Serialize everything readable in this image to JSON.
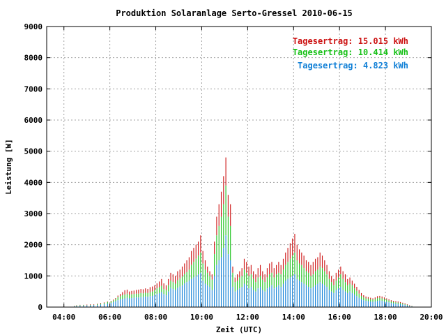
{
  "chart_data": {
    "type": "bar",
    "title": "Produktion Solaranlage Serto-Gressel 2010-06-15",
    "xlabel": "Zeit (UTC)",
    "ylabel": "Leistung [W]",
    "xlim": [
      3.25,
      20.0
    ],
    "ylim": [
      0,
      9000
    ],
    "x_ticks": [
      "04:00",
      "06:00",
      "08:00",
      "10:00",
      "12:00",
      "14:00",
      "16:00",
      "18:00",
      "20:00"
    ],
    "y_ticks": [
      "0",
      "1000",
      "2000",
      "3000",
      "4000",
      "5000",
      "6000",
      "7000",
      "8000",
      "9000"
    ],
    "grid": true,
    "stacked": true,
    "legend_position": "top-right",
    "series": [
      {
        "name": "Tagesertrag: 4.823 kWh",
        "value_label": "4.823 kWh",
        "color": "#0f7fd6"
      },
      {
        "name": "Tagesertrag: 10.414 kWh",
        "value_label": "10.414 kWh",
        "color": "#16c016"
      },
      {
        "name": "Tagesertrag: 15.015 kWh",
        "value_label": "15.015 kWh",
        "color": "#cc1111"
      }
    ],
    "points": [
      [
        4.45,
        20,
        30,
        40
      ],
      [
        4.55,
        30,
        50,
        60
      ],
      [
        4.7,
        40,
        60,
        70
      ],
      [
        4.85,
        40,
        60,
        70
      ],
      [
        5.0,
        50,
        60,
        80
      ],
      [
        5.15,
        50,
        70,
        90
      ],
      [
        5.3,
        60,
        70,
        90
      ],
      [
        5.45,
        60,
        90,
        110
      ],
      [
        5.6,
        80,
        110,
        130
      ],
      [
        5.75,
        90,
        130,
        150
      ],
      [
        5.9,
        110,
        160,
        180
      ],
      [
        6.05,
        130,
        180,
        200
      ],
      [
        6.15,
        160,
        210,
        240
      ],
      [
        6.25,
        190,
        260,
        290
      ],
      [
        6.35,
        220,
        320,
        370
      ],
      [
        6.45,
        250,
        350,
        420
      ],
      [
        6.55,
        260,
        380,
        480
      ],
      [
        6.65,
        280,
        400,
        540
      ],
      [
        6.75,
        300,
        430,
        560
      ],
      [
        6.85,
        280,
        390,
        500
      ],
      [
        6.95,
        290,
        410,
        520
      ],
      [
        7.05,
        300,
        420,
        530
      ],
      [
        7.15,
        310,
        430,
        550
      ],
      [
        7.25,
        310,
        430,
        560
      ],
      [
        7.35,
        320,
        450,
        580
      ],
      [
        7.45,
        320,
        440,
        570
      ],
      [
        7.55,
        340,
        460,
        600
      ],
      [
        7.65,
        330,
        450,
        580
      ],
      [
        7.75,
        350,
        480,
        640
      ],
      [
        7.85,
        360,
        500,
        660
      ],
      [
        7.95,
        390,
        540,
        700
      ],
      [
        8.05,
        420,
        600,
        760
      ],
      [
        8.15,
        450,
        640,
        820
      ],
      [
        8.25,
        480,
        680,
        900
      ],
      [
        8.35,
        420,
        580,
        760
      ],
      [
        8.45,
        380,
        540,
        700
      ],
      [
        8.55,
        500,
        700,
        900
      ],
      [
        8.65,
        620,
        850,
        1100
      ],
      [
        8.75,
        580,
        800,
        1050
      ],
      [
        8.85,
        540,
        750,
        1000
      ],
      [
        8.95,
        620,
        860,
        1150
      ],
      [
        9.05,
        660,
        920,
        1200
      ],
      [
        9.15,
        700,
        980,
        1300
      ],
      [
        9.25,
        760,
        1060,
        1400
      ],
      [
        9.35,
        800,
        1120,
        1500
      ],
      [
        9.45,
        850,
        1200,
        1600
      ],
      [
        9.55,
        900,
        1350,
        1800
      ],
      [
        9.65,
        950,
        1450,
        1900
      ],
      [
        9.75,
        1000,
        1550,
        2000
      ],
      [
        9.85,
        1050,
        1650,
        2100
      ],
      [
        9.95,
        1100,
        1750,
        2300
      ],
      [
        10.05,
        850,
        1400,
        1800
      ],
      [
        10.15,
        750,
        1200,
        1500
      ],
      [
        10.25,
        700,
        1100,
        1300
      ],
      [
        10.35,
        650,
        1000,
        1150
      ],
      [
        10.45,
        550,
        880,
        1050
      ],
      [
        10.55,
        1000,
        1700,
        2100
      ],
      [
        10.65,
        1350,
        2300,
        2900
      ],
      [
        10.75,
        1500,
        2600,
        3300
      ],
      [
        10.85,
        1600,
        2900,
        3700
      ],
      [
        10.95,
        1900,
        3300,
        4200
      ],
      [
        11.05,
        2300,
        3900,
        4800
      ],
      [
        11.15,
        1700,
        2900,
        3600
      ],
      [
        11.25,
        1500,
        2600,
        3300
      ],
      [
        11.35,
        650,
        1100,
        1300
      ],
      [
        11.45,
        500,
        800,
        950
      ],
      [
        11.55,
        550,
        850,
        1050
      ],
      [
        11.65,
        600,
        950,
        1150
      ],
      [
        11.75,
        650,
        1000,
        1250
      ],
      [
        11.85,
        750,
        1200,
        1550
      ],
      [
        11.95,
        700,
        1100,
        1450
      ],
      [
        12.05,
        600,
        1000,
        1300
      ],
      [
        12.15,
        650,
        1050,
        1350
      ],
      [
        12.25,
        550,
        900,
        1150
      ],
      [
        12.35,
        500,
        800,
        1050
      ],
      [
        12.45,
        600,
        950,
        1250
      ],
      [
        12.55,
        650,
        1000,
        1350
      ],
      [
        12.65,
        550,
        880,
        1150
      ],
      [
        12.75,
        500,
        800,
        1050
      ],
      [
        12.85,
        600,
        950,
        1250
      ],
      [
        12.95,
        650,
        1050,
        1400
      ],
      [
        13.05,
        700,
        1100,
        1450
      ],
      [
        13.15,
        600,
        950,
        1250
      ],
      [
        13.25,
        650,
        1050,
        1350
      ],
      [
        13.35,
        700,
        1100,
        1450
      ],
      [
        13.45,
        650,
        1050,
        1350
      ],
      [
        13.55,
        750,
        1200,
        1550
      ],
      [
        13.65,
        850,
        1350,
        1750
      ],
      [
        13.75,
        900,
        1450,
        1900
      ],
      [
        13.85,
        950,
        1550,
        2050
      ],
      [
        13.95,
        1000,
        1650,
        2200
      ],
      [
        14.05,
        1050,
        1750,
        2350
      ],
      [
        14.15,
        900,
        1500,
        2000
      ],
      [
        14.25,
        850,
        1400,
        1850
      ],
      [
        14.35,
        800,
        1350,
        1750
      ],
      [
        14.45,
        750,
        1250,
        1650
      ],
      [
        14.55,
        700,
        1150,
        1500
      ],
      [
        14.65,
        650,
        1100,
        1450
      ],
      [
        14.75,
        600,
        1000,
        1350
      ],
      [
        14.85,
        650,
        1050,
        1450
      ],
      [
        14.95,
        700,
        1150,
        1550
      ],
      [
        15.05,
        750,
        1200,
        1600
      ],
      [
        15.15,
        800,
        1300,
        1750
      ],
      [
        15.25,
        750,
        1250,
        1650
      ],
      [
        15.35,
        700,
        1150,
        1500
      ],
      [
        15.45,
        650,
        1050,
        1350
      ],
      [
        15.55,
        550,
        900,
        1150
      ],
      [
        15.65,
        500,
        800,
        1000
      ],
      [
        15.75,
        450,
        700,
        900
      ],
      [
        15.85,
        550,
        850,
        1100
      ],
      [
        15.95,
        600,
        950,
        1200
      ],
      [
        16.05,
        650,
        1050,
        1300
      ],
      [
        16.15,
        550,
        900,
        1150
      ],
      [
        16.25,
        500,
        800,
        1050
      ],
      [
        16.35,
        450,
        700,
        900
      ],
      [
        16.45,
        500,
        750,
        950
      ],
      [
        16.55,
        450,
        700,
        850
      ],
      [
        16.65,
        400,
        600,
        750
      ],
      [
        16.75,
        350,
        520,
        650
      ],
      [
        16.85,
        300,
        430,
        550
      ],
      [
        16.95,
        250,
        360,
        450
      ],
      [
        17.05,
        220,
        310,
        380
      ],
      [
        17.15,
        200,
        280,
        340
      ],
      [
        17.25,
        190,
        270,
        320
      ],
      [
        17.35,
        180,
        250,
        300
      ],
      [
        17.45,
        170,
        240,
        280
      ],
      [
        17.55,
        180,
        260,
        310
      ],
      [
        17.65,
        200,
        290,
        350
      ],
      [
        17.75,
        210,
        300,
        360
      ],
      [
        17.85,
        200,
        280,
        340
      ],
      [
        17.95,
        180,
        260,
        310
      ],
      [
        18.05,
        170,
        240,
        280
      ],
      [
        18.15,
        150,
        210,
        250
      ],
      [
        18.25,
        130,
        180,
        220
      ],
      [
        18.35,
        120,
        160,
        200
      ],
      [
        18.45,
        110,
        150,
        190
      ],
      [
        18.55,
        100,
        140,
        180
      ],
      [
        18.65,
        90,
        130,
        160
      ],
      [
        18.75,
        80,
        110,
        140
      ],
      [
        18.85,
        70,
        90,
        120
      ],
      [
        18.95,
        50,
        70,
        90
      ],
      [
        19.05,
        30,
        40,
        60
      ],
      [
        19.15,
        20,
        30,
        40
      ]
    ]
  }
}
